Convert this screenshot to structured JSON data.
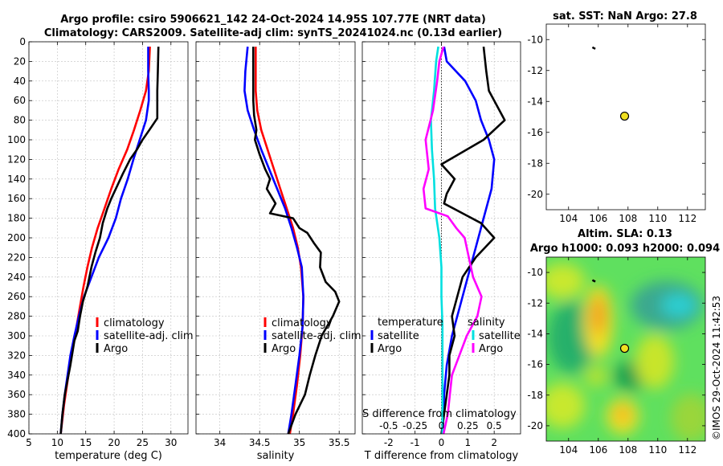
{
  "header": {
    "line1": "Argo profile: csiro 5906621_142 24-Oct-2024 14.95S 107.77E (NRT data)",
    "line2": "Climatology: CARS2009. Satellite-adj clim: synTS_20241024.nc (0.13d earlier)"
  },
  "colors": {
    "red": "#ff0000",
    "blue": "#0000ff",
    "black": "#000000",
    "cyan": "#00e0e0",
    "magenta": "#ff00ff"
  },
  "chart_data": [
    {
      "type": "line",
      "id": "temperature",
      "xlabel": "temperature (deg C)",
      "xlim": [
        5,
        33
      ],
      "ylim": [
        0,
        400
      ],
      "xticks": [
        5,
        10,
        15,
        20,
        25,
        30
      ],
      "yticks": [
        0,
        20,
        40,
        60,
        80,
        100,
        120,
        140,
        160,
        180,
        200,
        220,
        240,
        260,
        280,
        300,
        320,
        340,
        360,
        380,
        400
      ],
      "legend": [
        "climatology",
        "satellite-adj. clim",
        "Argo"
      ],
      "series": [
        {
          "name": "climatology",
          "color": "red",
          "points": [
            [
              26.3,
              5
            ],
            [
              26.1,
              30
            ],
            [
              25.6,
              50
            ],
            [
              24.6,
              70
            ],
            [
              23.5,
              90
            ],
            [
              22.3,
              110
            ],
            [
              20.8,
              130
            ],
            [
              19.5,
              150
            ],
            [
              18.3,
              170
            ],
            [
              17.1,
              190
            ],
            [
              16.1,
              210
            ],
            [
              15.3,
              230
            ],
            [
              14.6,
              250
            ],
            [
              14.0,
              270
            ],
            [
              13.4,
              290
            ],
            [
              12.8,
              310
            ],
            [
              12.2,
              330
            ],
            [
              11.7,
              350
            ],
            [
              11.2,
              370
            ],
            [
              10.8,
              390
            ],
            [
              10.6,
              400
            ]
          ]
        },
        {
          "name": "satellite-adj. clim",
          "color": "blue",
          "points": [
            [
              26.0,
              5
            ],
            [
              26.0,
              30
            ],
            [
              26.1,
              50
            ],
            [
              26.1,
              60
            ],
            [
              25.6,
              80
            ],
            [
              24.5,
              100
            ],
            [
              23.4,
              120
            ],
            [
              22.4,
              140
            ],
            [
              21.2,
              160
            ],
            [
              20.3,
              180
            ],
            [
              19.0,
              200
            ],
            [
              17.3,
              220
            ],
            [
              16.0,
              240
            ],
            [
              14.7,
              260
            ],
            [
              13.8,
              280
            ],
            [
              13.0,
              300
            ],
            [
              12.3,
              320
            ],
            [
              11.8,
              340
            ],
            [
              11.3,
              360
            ],
            [
              10.9,
              380
            ],
            [
              10.6,
              400
            ]
          ]
        },
        {
          "name": "Argo",
          "color": "black",
          "points": [
            [
              27.8,
              5
            ],
            [
              27.7,
              30
            ],
            [
              27.6,
              50
            ],
            [
              27.6,
              78
            ],
            [
              26.2,
              90
            ],
            [
              25.0,
              100
            ],
            [
              24.0,
              110
            ],
            [
              22.8,
              120
            ],
            [
              21.5,
              135
            ],
            [
              20.3,
              150
            ],
            [
              19.5,
              160
            ],
            [
              18.8,
              170
            ],
            [
              18.0,
              185
            ],
            [
              17.5,
              200
            ],
            [
              16.7,
              215
            ],
            [
              16.0,
              230
            ],
            [
              15.3,
              250
            ],
            [
              14.5,
              265
            ],
            [
              14.0,
              280
            ],
            [
              13.6,
              295
            ],
            [
              13.0,
              305
            ],
            [
              12.3,
              330
            ],
            [
              11.8,
              345
            ],
            [
              11.3,
              360
            ],
            [
              10.9,
              380
            ],
            [
              10.6,
              400
            ]
          ]
        }
      ]
    },
    {
      "type": "line",
      "id": "salinity",
      "xlabel": "salinity",
      "xlim": [
        33.7,
        35.7
      ],
      "ylim": [
        0,
        400
      ],
      "xticks": [
        34,
        34.5,
        35,
        35.5
      ],
      "xticklabels": [
        "34",
        "34.5",
        "35",
        "35.5"
      ],
      "legend": [
        "climatology",
        "satellite-adj. clim",
        "Argo"
      ],
      "series": [
        {
          "name": "climatology",
          "color": "red",
          "points": [
            [
              34.45,
              5
            ],
            [
              34.45,
              50
            ],
            [
              34.47,
              70
            ],
            [
              34.52,
              90
            ],
            [
              34.6,
              110
            ],
            [
              34.68,
              130
            ],
            [
              34.76,
              150
            ],
            [
              34.84,
              170
            ],
            [
              34.92,
              190
            ],
            [
              34.98,
              210
            ],
            [
              35.02,
              230
            ],
            [
              35.05,
              260
            ],
            [
              35.04,
              290
            ],
            [
              35.01,
              320
            ],
            [
              34.97,
              350
            ],
            [
              34.92,
              380
            ],
            [
              34.88,
              400
            ]
          ]
        },
        {
          "name": "satellite-adj. clim",
          "color": "blue",
          "points": [
            [
              34.35,
              5
            ],
            [
              34.32,
              30
            ],
            [
              34.31,
              50
            ],
            [
              34.35,
              70
            ],
            [
              34.43,
              90
            ],
            [
              34.52,
              110
            ],
            [
              34.62,
              130
            ],
            [
              34.72,
              150
            ],
            [
              34.82,
              170
            ],
            [
              34.9,
              190
            ],
            [
              34.97,
              210
            ],
            [
              35.03,
              230
            ],
            [
              35.05,
              260
            ],
            [
              35.04,
              290
            ],
            [
              35.0,
              320
            ],
            [
              34.95,
              350
            ],
            [
              34.9,
              380
            ],
            [
              34.86,
              400
            ]
          ]
        },
        {
          "name": "Argo",
          "color": "black",
          "points": [
            [
              34.42,
              5
            ],
            [
              34.42,
              60
            ],
            [
              34.43,
              75
            ],
            [
              34.46,
              90
            ],
            [
              34.44,
              100
            ],
            [
              34.5,
              115
            ],
            [
              34.57,
              130
            ],
            [
              34.63,
              140
            ],
            [
              34.59,
              150
            ],
            [
              34.7,
              165
            ],
            [
              34.63,
              175
            ],
            [
              34.92,
              180
            ],
            [
              35.0,
              190
            ],
            [
              35.1,
              195
            ],
            [
              35.18,
              205
            ],
            [
              35.27,
              215
            ],
            [
              35.26,
              230
            ],
            [
              35.33,
              245
            ],
            [
              35.45,
              255
            ],
            [
              35.5,
              265
            ],
            [
              35.42,
              280
            ],
            [
              35.28,
              300
            ],
            [
              35.2,
              320
            ],
            [
              35.13,
              340
            ],
            [
              35.07,
              360
            ],
            [
              34.95,
              380
            ],
            [
              34.86,
              400
            ]
          ]
        }
      ]
    },
    {
      "type": "line",
      "id": "difference",
      "xlabel": "T difference from climatology",
      "x2label": "S difference from climatology",
      "xlim": [
        -3,
        3
      ],
      "ylim": [
        0,
        400
      ],
      "xticks": [
        -2,
        -1,
        0,
        1,
        2
      ],
      "xticklabels": [
        "-2",
        "-1",
        "0",
        "1",
        "2"
      ],
      "x2ticks": [
        -0.5,
        -0.25,
        0,
        0.25,
        0.5
      ],
      "x2ticklabels": [
        "-0.5",
        "-0.25",
        "0",
        "0.25",
        "0.5"
      ],
      "x2lim": [
        -0.75,
        0.75
      ],
      "legend_temperature_title": "temperature",
      "legend_salinity_title": "salinity",
      "legend": [
        "satellite",
        "Argo",
        "satellite",
        "Argo"
      ],
      "series": [
        {
          "name": "T satellite",
          "color": "blue",
          "points": [
            [
              0.1,
              5
            ],
            [
              0.2,
              20
            ],
            [
              0.9,
              40
            ],
            [
              1.3,
              60
            ],
            [
              1.5,
              80
            ],
            [
              1.8,
              100
            ],
            [
              2.0,
              120
            ],
            [
              1.9,
              150
            ],
            [
              1.6,
              180
            ],
            [
              1.3,
              210
            ],
            [
              1.0,
              240
            ],
            [
              0.7,
              270
            ],
            [
              0.4,
              300
            ],
            [
              0.2,
              330
            ],
            [
              0.1,
              360
            ],
            [
              0.05,
              400
            ]
          ]
        },
        {
          "name": "T Argo",
          "color": "black",
          "points": [
            [
              1.6,
              5
            ],
            [
              1.7,
              30
            ],
            [
              1.8,
              50
            ],
            [
              2.4,
              80
            ],
            [
              1.6,
              100
            ],
            [
              0.0,
              125
            ],
            [
              0.5,
              140
            ],
            [
              0.2,
              155
            ],
            [
              0.1,
              165
            ],
            [
              0.8,
              175
            ],
            [
              1.5,
              185
            ],
            [
              2.0,
              200
            ],
            [
              1.3,
              220
            ],
            [
              0.8,
              240
            ],
            [
              0.6,
              260
            ],
            [
              0.4,
              280
            ],
            [
              0.5,
              300
            ],
            [
              0.3,
              320
            ],
            [
              0.3,
              340
            ],
            [
              0.2,
              360
            ],
            [
              0.1,
              380
            ],
            [
              0.0,
              400
            ]
          ]
        },
        {
          "name": "S satellite",
          "color": "cyan",
          "points": [
            [
              -0.03,
              5
            ],
            [
              -0.05,
              20
            ],
            [
              -0.07,
              50
            ],
            [
              -0.1,
              80
            ],
            [
              -0.09,
              110
            ],
            [
              -0.07,
              140
            ],
            [
              -0.06,
              170
            ],
            [
              -0.02,
              200
            ],
            [
              0.0,
              230
            ],
            [
              0.0,
              260
            ],
            [
              0.01,
              290
            ],
            [
              0.01,
              320
            ],
            [
              0.01,
              350
            ],
            [
              0.01,
              380
            ],
            [
              0.01,
              400
            ]
          ]
        },
        {
          "name": "S Argo",
          "color": "magenta",
          "points": [
            [
              0.02,
              5
            ],
            [
              -0.02,
              20
            ],
            [
              -0.04,
              40
            ],
            [
              -0.08,
              70
            ],
            [
              -0.15,
              100
            ],
            [
              -0.12,
              130
            ],
            [
              -0.17,
              150
            ],
            [
              -0.15,
              170
            ],
            [
              0.06,
              178
            ],
            [
              0.14,
              190
            ],
            [
              0.22,
              200
            ],
            [
              0.26,
              220
            ],
            [
              0.3,
              240
            ],
            [
              0.38,
              260
            ],
            [
              0.34,
              280
            ],
            [
              0.24,
              300
            ],
            [
              0.17,
              320
            ],
            [
              0.1,
              340
            ],
            [
              0.08,
              360
            ],
            [
              0.06,
              380
            ],
            [
              0.02,
              400
            ]
          ]
        }
      ]
    },
    {
      "type": "scatter",
      "id": "sst_map",
      "title": "sat. SST: NaN Argo: 27.8",
      "xlim": [
        102.5,
        113.2
      ],
      "ylim": [
        -21,
        -9
      ],
      "xticks": [
        104,
        106,
        108,
        110,
        112
      ],
      "yticks": [
        -10,
        -12,
        -14,
        -16,
        -18,
        -20
      ],
      "argo_position": [
        107.77,
        -14.95
      ],
      "track": [
        [
          105.6,
          -10.5
        ],
        [
          105.8,
          -10.6
        ]
      ]
    },
    {
      "type": "heatmap",
      "id": "sla_map",
      "title_line1": "Altim. SLA: 0.13",
      "title_line2": "Argo h1000: 0.093 h2000: 0.094",
      "xlim": [
        102.5,
        113.2
      ],
      "ylim": [
        -21,
        -9
      ],
      "xticks": [
        104,
        106,
        108,
        110,
        112
      ],
      "yticks": [
        -10,
        -12,
        -14,
        -16,
        -18,
        -20
      ],
      "argo_position": [
        107.77,
        -14.95
      ],
      "track": [
        [
          105.6,
          -10.5
        ],
        [
          105.8,
          -10.6
        ]
      ]
    }
  ],
  "footer": {
    "watermark": "©IMOS 29-Oct-2024 11:42:53"
  }
}
